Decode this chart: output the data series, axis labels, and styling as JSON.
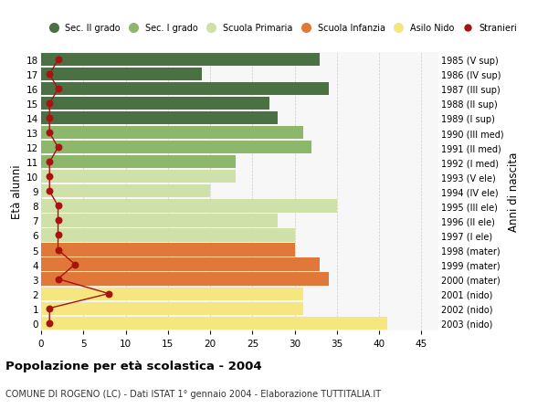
{
  "ages": [
    0,
    1,
    2,
    3,
    4,
    5,
    6,
    7,
    8,
    9,
    10,
    11,
    12,
    13,
    14,
    15,
    16,
    17,
    18
  ],
  "years": [
    "2003 (nido)",
    "2002 (nido)",
    "2001 (nido)",
    "2000 (mater)",
    "1999 (mater)",
    "1998 (mater)",
    "1997 (I ele)",
    "1996 (II ele)",
    "1995 (III ele)",
    "1994 (IV ele)",
    "1993 (V ele)",
    "1992 (I med)",
    "1991 (II med)",
    "1990 (III med)",
    "1989 (I sup)",
    "1988 (II sup)",
    "1987 (III sup)",
    "1986 (IV sup)",
    "1985 (V sup)"
  ],
  "bar_values": [
    41,
    31,
    31,
    34,
    33,
    30,
    30,
    28,
    35,
    20,
    23,
    23,
    32,
    31,
    28,
    27,
    34,
    19,
    33
  ],
  "bar_colors": [
    "#f5e680",
    "#f5e680",
    "#f5e680",
    "#e0783a",
    "#e0783a",
    "#e0783a",
    "#cfe0a8",
    "#cfe0a8",
    "#cfe0a8",
    "#cfe0a8",
    "#cfe0a8",
    "#8db86b",
    "#8db86b",
    "#8db86b",
    "#4a7043",
    "#4a7043",
    "#4a7043",
    "#4a7043",
    "#4a7043"
  ],
  "stranieri_values": [
    1,
    1,
    8,
    2,
    4,
    2,
    2,
    2,
    2,
    1,
    1,
    1,
    2,
    1,
    1,
    1,
    2,
    1,
    2
  ],
  "legend_labels": [
    "Sec. II grado",
    "Sec. I grado",
    "Scuola Primaria",
    "Scuola Infanzia",
    "Asilo Nido",
    "Stranieri"
  ],
  "legend_colors": [
    "#4a7043",
    "#8db86b",
    "#cfe0a8",
    "#e0783a",
    "#f5e680",
    "#aa1111"
  ],
  "ylabel": "Età alunni",
  "y2label": "Anni di nascita",
  "title": "Popolazione per età scolastica - 2004",
  "subtitle": "COMUNE DI ROGENO (LC) - Dati ISTAT 1° gennaio 2004 - Elaborazione TUTTITALIA.IT",
  "xlim": [
    0,
    47
  ],
  "xticks": [
    0,
    5,
    10,
    15,
    20,
    25,
    30,
    35,
    40,
    45
  ],
  "bg_color": "#f7f7f7",
  "grid_color": "#cccccc"
}
